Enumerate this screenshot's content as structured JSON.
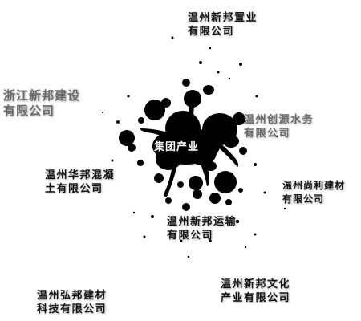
{
  "colors": {
    "ink": "#000000",
    "dark_text": "#141414",
    "grey_text": "#6a6a6a",
    "center_text": "#ffffff",
    "background": "#ffffff"
  },
  "center": {
    "label": "集团产业"
  },
  "companies": [
    {
      "id": "zhiye",
      "lines": [
        "温州新邦置业",
        "有限公司"
      ],
      "tone": "dark"
    },
    {
      "id": "zhejiang-jianshe",
      "lines": [
        "浙江新邦建设",
        "有限公司"
      ],
      "tone": "grey"
    },
    {
      "id": "chuangyuan-shuiwu",
      "lines": [
        "温州创源水务",
        "有限公司"
      ],
      "tone": "grey"
    },
    {
      "id": "huabang-hunningtu",
      "lines": [
        "温州华邦混凝",
        "土有限公司"
      ],
      "tone": "dark"
    },
    {
      "id": "shangli-jiancai",
      "lines": [
        "温州尚利建材",
        "有限公司"
      ],
      "tone": "dark"
    },
    {
      "id": "yunshu",
      "lines": [
        "温州新邦运输",
        "有限公司"
      ],
      "tone": "dark"
    },
    {
      "id": "wenhua-chanye",
      "lines": [
        "温州新邦文化",
        "产业有限公司"
      ],
      "tone": "dark"
    },
    {
      "id": "hongbang-jiancai",
      "lines": [
        "温州弘邦建材",
        "科技有限公司"
      ],
      "tone": "dark"
    }
  ]
}
